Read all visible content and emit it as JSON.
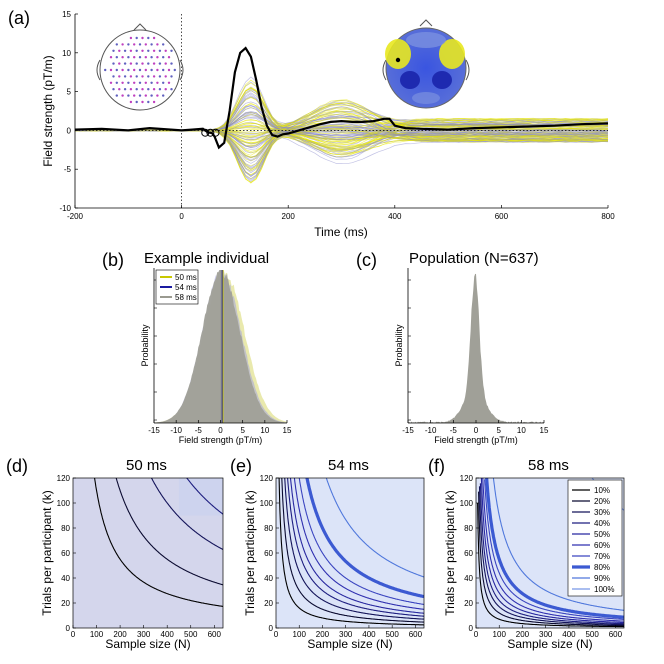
{
  "panels": {
    "a": {
      "label": "(a)"
    },
    "b": {
      "label": "(b)",
      "title": "Example individual"
    },
    "c": {
      "label": "(c)",
      "title": "Population (N=637)"
    },
    "d": {
      "label": "(d)",
      "title": "50 ms"
    },
    "e": {
      "label": "(e)",
      "title": "54 ms"
    },
    "f": {
      "label": "(f)",
      "title": "58 ms"
    }
  },
  "chart_data": [
    {
      "panel": "a",
      "type": "line",
      "xlabel": "Time (ms)",
      "ylabel": "Field strength (pT/m)",
      "xlim": [
        -200,
        800
      ],
      "ylim": [
        -10,
        15
      ],
      "xticks": [
        -200,
        0,
        200,
        400,
        600,
        800
      ],
      "yticks": [
        -10,
        -5,
        0,
        5,
        10,
        15
      ],
      "series": [
        {
          "color": "#000000",
          "x": [
            -200,
            -150,
            -100,
            -60,
            -20,
            0,
            20,
            40,
            50,
            54,
            58,
            62,
            70,
            80,
            90,
            100,
            110,
            120,
            130,
            140,
            150,
            160,
            170,
            180,
            190,
            200,
            220,
            240,
            260,
            280,
            300,
            320,
            340,
            360,
            380,
            390,
            400,
            420,
            450,
            500,
            550,
            600,
            650,
            700,
            750,
            800
          ],
          "y": [
            0.1,
            0.2,
            0.0,
            0.3,
            0.1,
            0.0,
            0.1,
            0.2,
            -0.3,
            -0.3,
            -0.4,
            -0.8,
            -2.2,
            -1.6,
            2.5,
            7.5,
            10.0,
            10.6,
            9.5,
            6.5,
            3.0,
            0.6,
            -0.6,
            -0.8,
            -0.5,
            -0.4,
            0.0,
            0.4,
            0.8,
            1.1,
            1.2,
            1.1,
            1.1,
            1.2,
            1.5,
            1.5,
            0.6,
            0.3,
            0.2,
            0.1,
            0.3,
            0.4,
            0.5,
            0.6,
            0.8,
            0.9
          ]
        }
      ]
    },
    {
      "panel": "b",
      "type": "area",
      "ylabel": "Probability",
      "xlabel": "Field strength (pT/m)",
      "xlim": [
        -15,
        15
      ],
      "xticks": [
        -15,
        -10,
        -5,
        0,
        5,
        10,
        15
      ],
      "legend": "top-left",
      "series": [
        {
          "name": "50 ms",
          "color": "#c8c800",
          "mean": 0.5
        },
        {
          "name": "54 ms",
          "color": "#1a1aa0",
          "mean": 0.3
        },
        {
          "name": "58 ms",
          "color": "#9a9a90",
          "mean": 0.1
        }
      ]
    },
    {
      "panel": "c",
      "type": "area",
      "ylabel": "Probability",
      "xlabel": "Field strength (pT/m)",
      "xlim": [
        -15,
        15
      ],
      "xticks": [
        -15,
        -10,
        -5,
        0,
        5,
        10,
        15
      ],
      "series": [
        {
          "color": "#9a9a90",
          "mean": -0.2
        }
      ]
    },
    {
      "panel": "d",
      "type": "line",
      "xlabel": "Sample size (N)",
      "ylabel": "Trials per participant (k)",
      "xlim": [
        0,
        637
      ],
      "ylim": [
        0,
        120
      ],
      "xticks": [
        0,
        100,
        200,
        300,
        400,
        500,
        600
      ],
      "yticks": [
        0,
        20,
        40,
        60,
        80,
        100,
        120
      ],
      "series": [
        {
          "name": "10%",
          "k": 11000
        },
        {
          "name": "20%",
          "k": 22000
        },
        {
          "name": "30%",
          "k": 40000
        },
        {
          "name": "40%",
          "k": 58000
        },
        {
          "name": "50%",
          "k": 88000
        },
        {
          "name": "60%",
          "k": 120000
        },
        {
          "name": "70%",
          "k": 165000
        },
        {
          "name": "80%",
          "k": 230000
        }
      ]
    },
    {
      "panel": "e",
      "type": "line",
      "xlabel": "Sample size (N)",
      "ylabel": "Trials per participant (k)",
      "xlim": [
        0,
        637
      ],
      "ylim": [
        0,
        120
      ],
      "xticks": [
        0,
        100,
        200,
        300,
        400,
        500,
        600
      ],
      "yticks": [
        0,
        20,
        40,
        60,
        80,
        100,
        120
      ],
      "series": [
        {
          "name": "10%",
          "k": 1600
        },
        {
          "name": "20%",
          "k": 3000
        },
        {
          "name": "30%",
          "k": 4500
        },
        {
          "name": "40%",
          "k": 6000
        },
        {
          "name": "50%",
          "k": 7500
        },
        {
          "name": "60%",
          "k": 9500
        },
        {
          "name": "70%",
          "k": 12000
        },
        {
          "name": "80%",
          "k": 16000
        },
        {
          "name": "90%",
          "k": 26000
        }
      ]
    },
    {
      "panel": "f",
      "type": "line",
      "xlabel": "Sample size (N)",
      "ylabel": "Trials per participant (k)",
      "xlim": [
        0,
        637
      ],
      "ylim": [
        0,
        120
      ],
      "xticks": [
        0,
        100,
        200,
        300,
        400,
        500,
        600
      ],
      "yticks": [
        0,
        20,
        40,
        60,
        80,
        100,
        120
      ],
      "legend": "top-right",
      "series": [
        {
          "name": "10%",
          "k": 700
        },
        {
          "name": "20%",
          "k": 1200
        },
        {
          "name": "30%",
          "k": 1700
        },
        {
          "name": "40%",
          "k": 2200
        },
        {
          "name": "50%",
          "k": 2800
        },
        {
          "name": "60%",
          "k": 3500
        },
        {
          "name": "70%",
          "k": 4400
        },
        {
          "name": "80%",
          "k": 5500
        },
        {
          "name": "90%",
          "k": 9000
        },
        {
          "name": "100%",
          "k": 60000
        }
      ]
    }
  ],
  "colors": {
    "contours": [
      "#000000",
      "#0a0a30",
      "#14145a",
      "#1e1e80",
      "#2828a0",
      "#3030b0",
      "#3c46c0",
      "#3c5ad2",
      "#5078dc",
      "#7896e6"
    ],
    "fieldBg": "#dce4f8",
    "yellow": "#e6e600",
    "purple": "#8888cc"
  }
}
